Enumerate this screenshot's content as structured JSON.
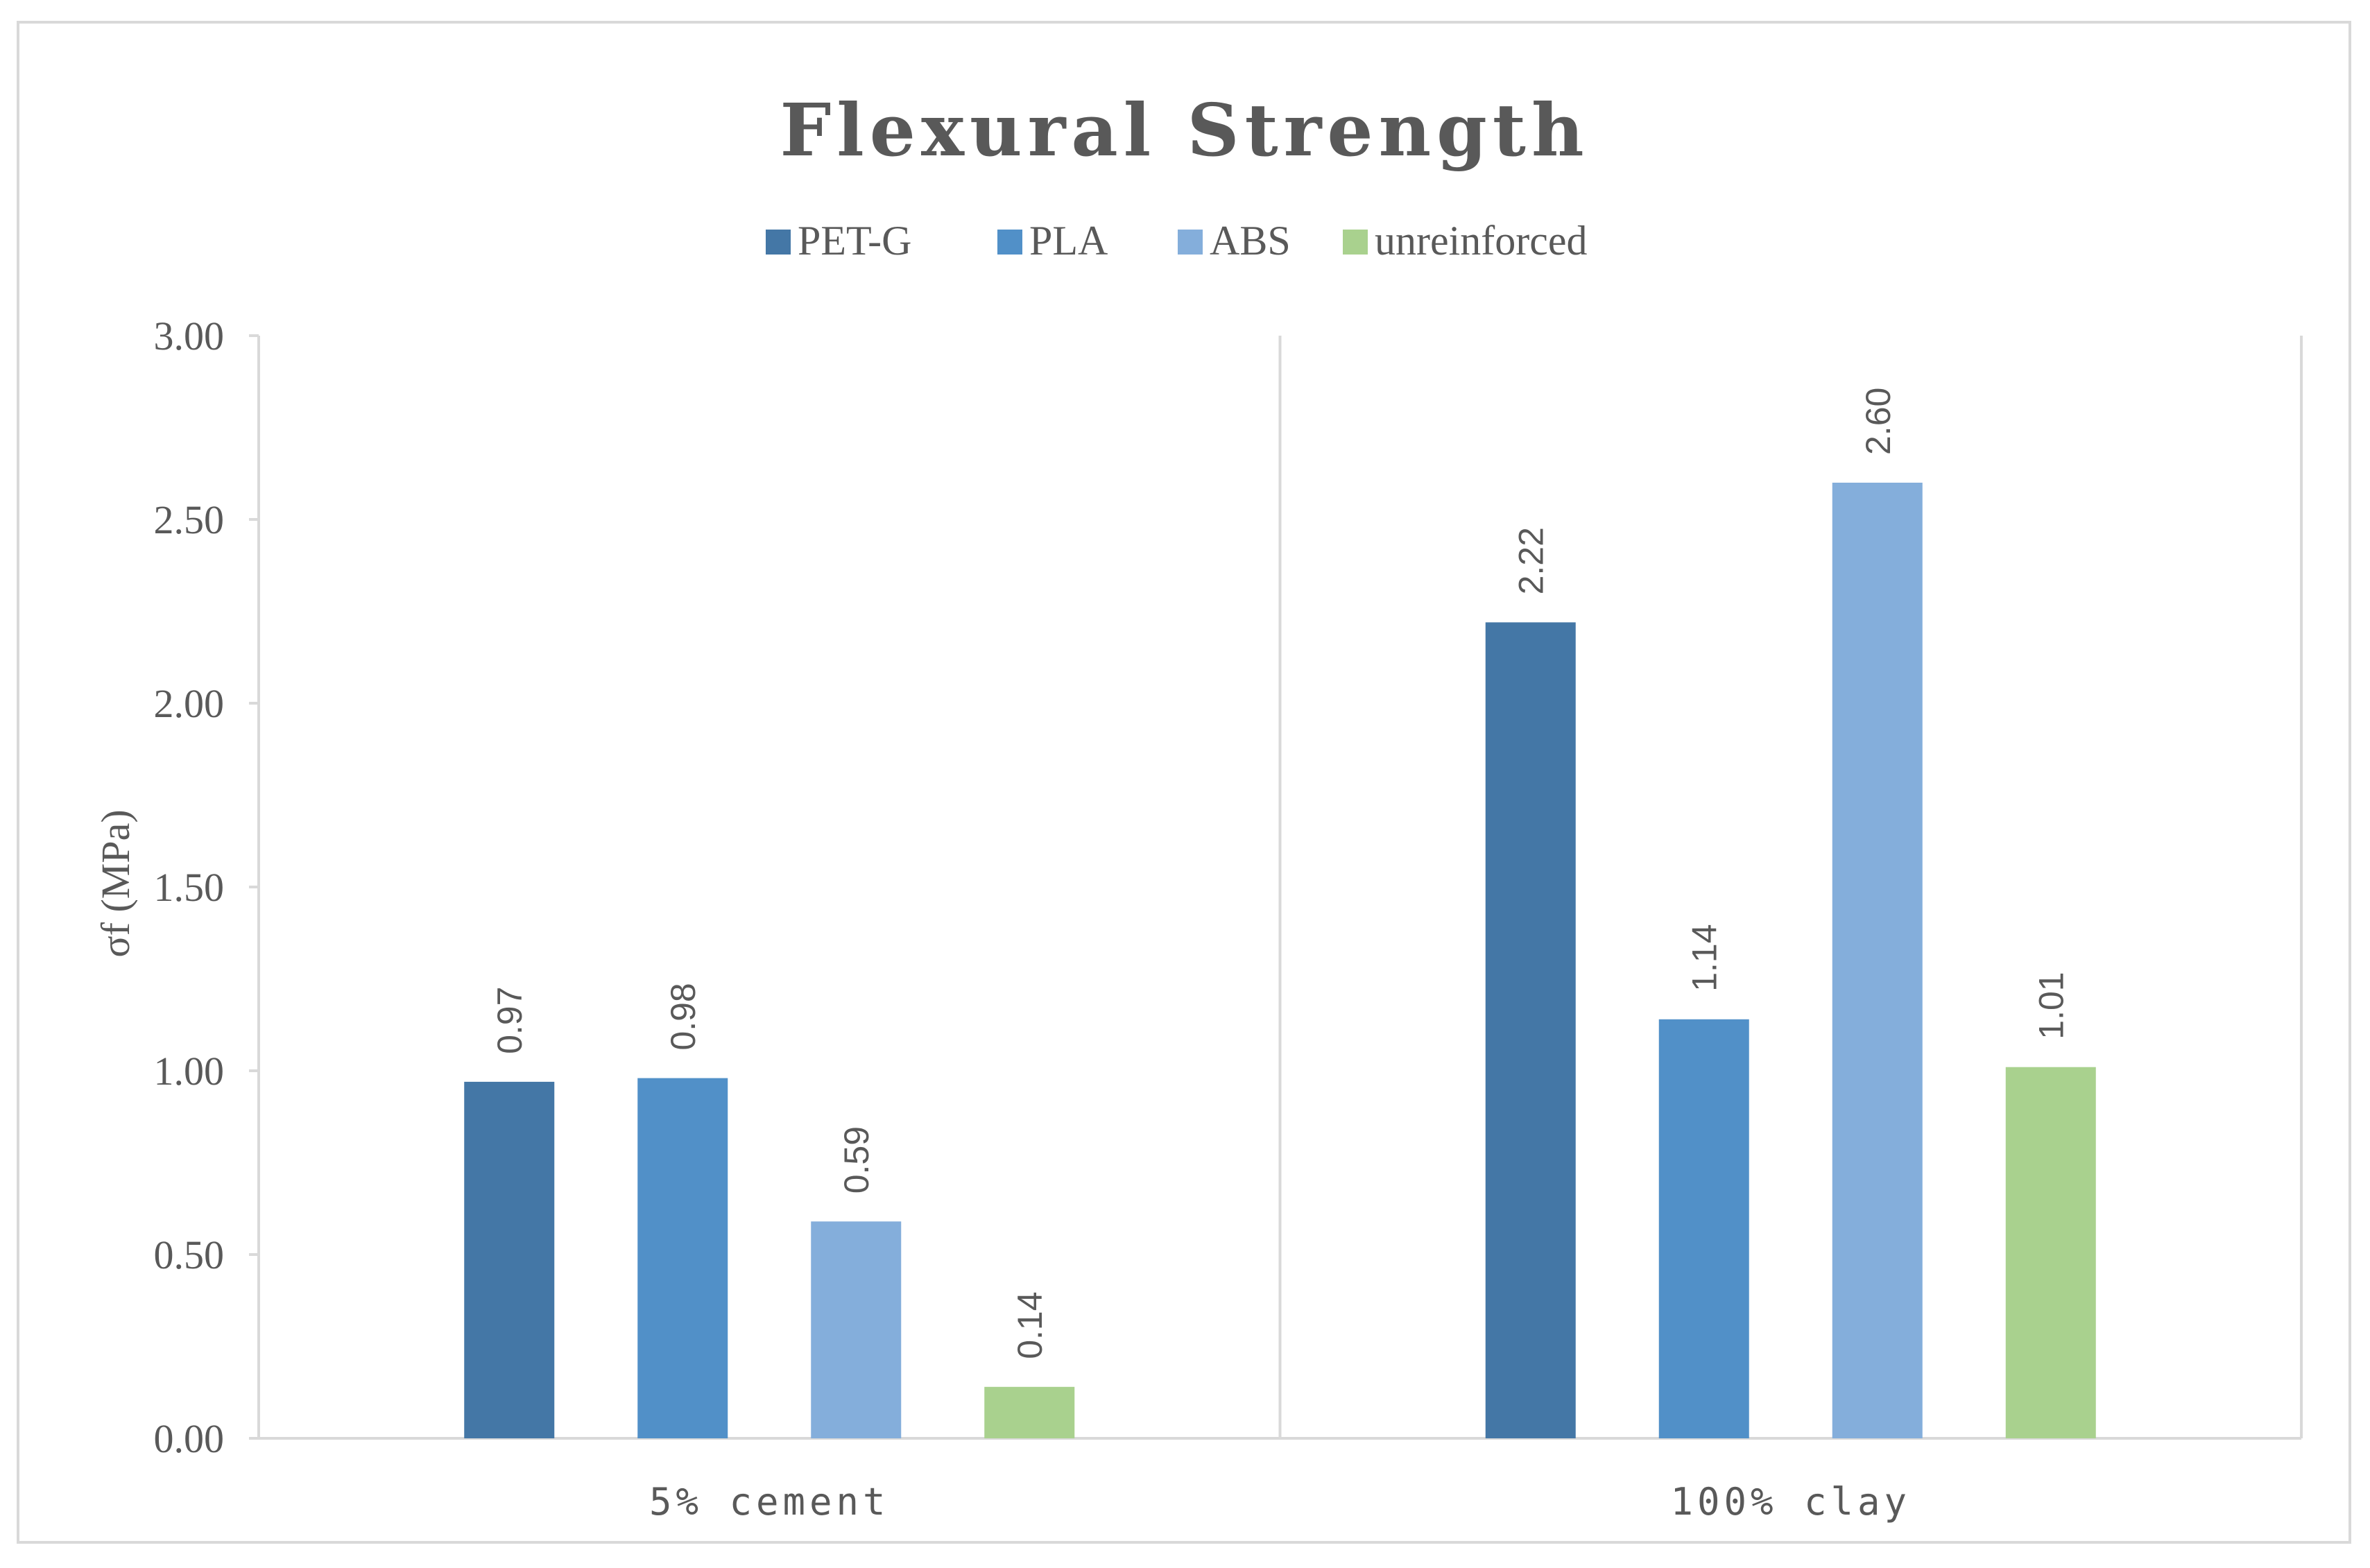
{
  "chart_data": {
    "type": "bar",
    "title": "Flexural Strength",
    "ylabel": "σf (MPa)",
    "xlabel": "",
    "categories": [
      "5% cement",
      "100% clay"
    ],
    "ylim": [
      0,
      3
    ],
    "yticks": [
      0,
      0.5,
      1,
      1.5,
      2,
      2.5,
      3
    ],
    "ytick_labels": [
      "0.00",
      "0.50",
      "1.00",
      "1.50",
      "2.00",
      "2.50",
      "3.00"
    ],
    "legend_position": "top",
    "grid": false,
    "series": [
      {
        "name": "PET-G",
        "color": "#4477a6",
        "values": [
          0.97,
          2.22
        ],
        "labels": [
          "0.97",
          "2.22"
        ]
      },
      {
        "name": "PLA",
        "color": "#5190c8",
        "values": [
          0.98,
          1.14
        ],
        "labels": [
          "0.98",
          "1.14"
        ]
      },
      {
        "name": "ABS",
        "color": "#84aedb",
        "values": [
          0.59,
          2.6
        ],
        "labels": [
          "0.59",
          "2.60"
        ]
      },
      {
        "name": "unreinforced",
        "color": "#a9d18e",
        "values": [
          0.14,
          1.01
        ],
        "labels": [
          "0.14",
          "1.01"
        ]
      }
    ]
  }
}
